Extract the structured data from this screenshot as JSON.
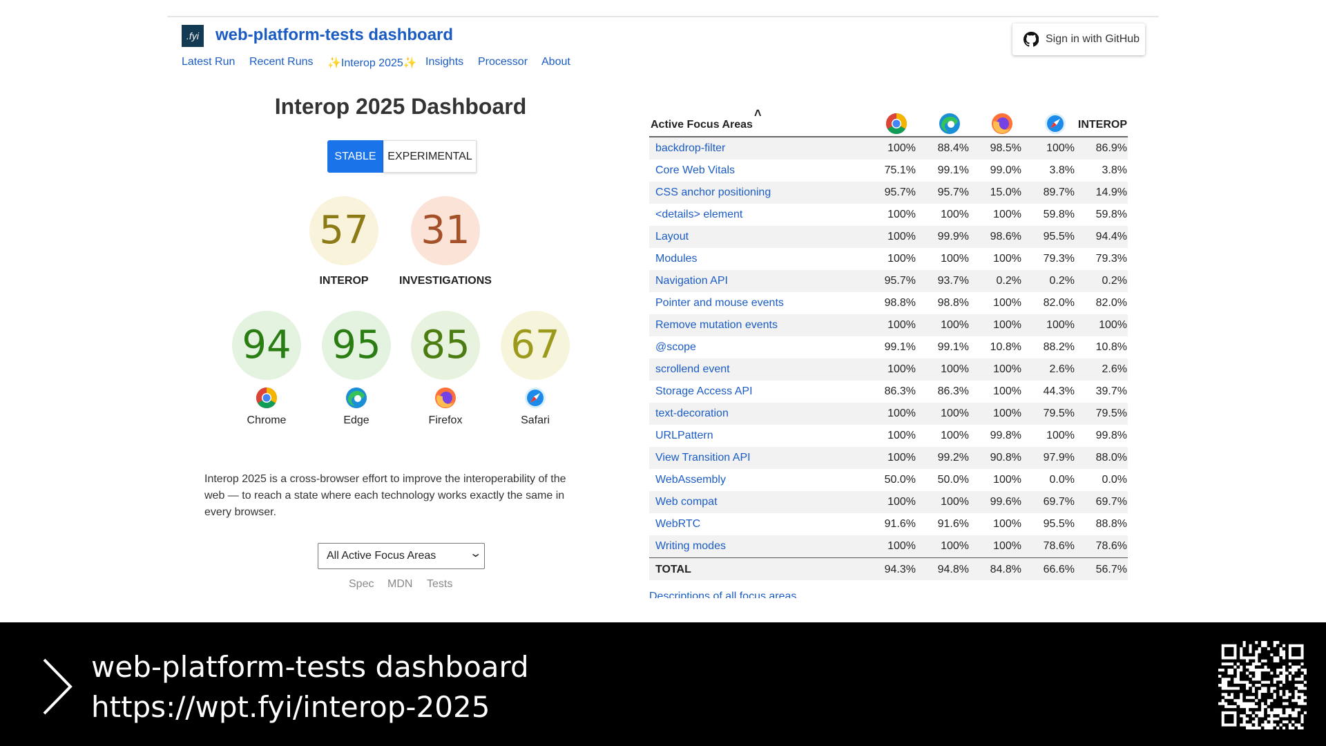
{
  "header": {
    "logo": ".fyi",
    "title": "web-platform-tests dashboard",
    "nav": [
      "Latest Run",
      "Recent Runs",
      "✨Interop 2025✨",
      "Insights",
      "Processor",
      "About"
    ],
    "sign_in": "Sign in with GitHub"
  },
  "dashboard": {
    "title": "Interop 2025 Dashboard",
    "toggle": [
      "STABLE",
      "EXPERIMENTAL"
    ],
    "summary": [
      {
        "score": 57,
        "label": "INTEROP"
      },
      {
        "score": 31,
        "label": "INVESTIGATIONS"
      }
    ],
    "browsers": [
      {
        "score": 94,
        "name": "Chrome"
      },
      {
        "score": 95,
        "name": "Edge"
      },
      {
        "score": 85,
        "name": "Firefox"
      },
      {
        "score": 67,
        "name": "Safari"
      }
    ],
    "description": "Interop 2025 is a cross-browser effort to improve the interoperability of the web — to reach a state where each technology works exactly the same in every browser.",
    "select": "All Active Focus Areas",
    "links": [
      "Spec",
      "MDN",
      "Tests"
    ]
  },
  "table": {
    "header": [
      "Active Focus Areas",
      "INTEROP"
    ],
    "rows": [
      [
        "backdrop-filter",
        "100%",
        "88.4%",
        "98.5%",
        "100%",
        "86.9%"
      ],
      [
        "Core Web Vitals",
        "75.1%",
        "99.1%",
        "99.0%",
        "3.8%",
        "3.8%"
      ],
      [
        "CSS anchor positioning",
        "95.7%",
        "95.7%",
        "15.0%",
        "89.7%",
        "14.9%"
      ],
      [
        "<details> element",
        "100%",
        "100%",
        "100%",
        "59.8%",
        "59.8%"
      ],
      [
        "Layout",
        "100%",
        "99.9%",
        "98.6%",
        "95.5%",
        "94.4%"
      ],
      [
        "Modules",
        "100%",
        "100%",
        "100%",
        "79.3%",
        "79.3%"
      ],
      [
        "Navigation API",
        "95.7%",
        "93.7%",
        "0.2%",
        "0.2%",
        "0.2%"
      ],
      [
        "Pointer and mouse events",
        "98.8%",
        "98.8%",
        "100%",
        "82.0%",
        "82.0%"
      ],
      [
        "Remove mutation events",
        "100%",
        "100%",
        "100%",
        "100%",
        "100%"
      ],
      [
        "@scope",
        "99.1%",
        "99.1%",
        "10.8%",
        "88.2%",
        "10.8%"
      ],
      [
        "scrollend event",
        "100%",
        "100%",
        "100%",
        "2.6%",
        "2.6%"
      ],
      [
        "Storage Access API",
        "86.3%",
        "86.3%",
        "100%",
        "44.3%",
        "39.7%"
      ],
      [
        "text-decoration",
        "100%",
        "100%",
        "100%",
        "79.5%",
        "79.5%"
      ],
      [
        "URLPattern",
        "100%",
        "100%",
        "99.8%",
        "100%",
        "99.8%"
      ],
      [
        "View Transition API",
        "100%",
        "99.2%",
        "90.8%",
        "97.9%",
        "88.0%"
      ],
      [
        "WebAssembly",
        "50.0%",
        "50.0%",
        "100%",
        "0.0%",
        "0.0%"
      ],
      [
        "Web compat",
        "100%",
        "100%",
        "99.6%",
        "69.7%",
        "69.7%"
      ],
      [
        "WebRTC",
        "91.6%",
        "91.6%",
        "100%",
        "95.5%",
        "88.8%"
      ],
      [
        "Writing modes",
        "100%",
        "100%",
        "100%",
        "78.6%",
        "78.6%"
      ]
    ],
    "total": [
      "TOTAL",
      "94.3%",
      "94.8%",
      "84.8%",
      "66.6%",
      "56.7%"
    ],
    "footer_link": "Descriptions of all focus areas"
  },
  "slide": {
    "title": "web-platform-tests dashboard",
    "url": "https://wpt.fyi/interop-2025"
  }
}
